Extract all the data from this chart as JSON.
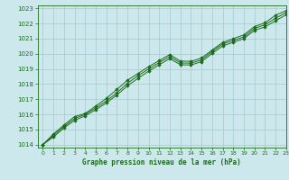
{
  "title": "Graphe pression niveau de la mer (hPa)",
  "bg_color": "#cce8ec",
  "grid_color": "#aacdd4",
  "line_color": "#1a6b1a",
  "marker_color": "#1a6b1a",
  "xlim": [
    -0.5,
    23
  ],
  "ylim": [
    1013.8,
    1023.2
  ],
  "xticks": [
    0,
    1,
    2,
    3,
    4,
    5,
    6,
    7,
    8,
    9,
    10,
    11,
    12,
    13,
    14,
    15,
    16,
    17,
    18,
    19,
    20,
    21,
    22,
    23
  ],
  "yticks": [
    1014,
    1015,
    1016,
    1017,
    1018,
    1019,
    1020,
    1021,
    1022,
    1023
  ],
  "series": [
    [
      1014.0,
      1014.7,
      1015.3,
      1015.85,
      1016.05,
      1016.55,
      1017.05,
      1017.65,
      1018.25,
      1018.7,
      1019.15,
      1019.55,
      1019.95,
      1019.52,
      1019.5,
      1019.72,
      1020.25,
      1020.75,
      1021.0,
      1021.25,
      1021.8,
      1022.05,
      1022.55,
      1022.85
    ],
    [
      1014.0,
      1014.6,
      1015.2,
      1015.72,
      1016.0,
      1016.42,
      1016.88,
      1017.42,
      1018.05,
      1018.55,
      1019.0,
      1019.42,
      1019.82,
      1019.4,
      1019.38,
      1019.6,
      1020.15,
      1020.65,
      1020.88,
      1021.12,
      1021.68,
      1021.92,
      1022.35,
      1022.72
    ],
    [
      1014.0,
      1014.5,
      1015.1,
      1015.6,
      1015.9,
      1016.3,
      1016.75,
      1017.28,
      1017.88,
      1018.38,
      1018.85,
      1019.28,
      1019.68,
      1019.28,
      1019.26,
      1019.48,
      1020.02,
      1020.52,
      1020.76,
      1021.0,
      1021.55,
      1021.78,
      1022.18,
      1022.58
    ]
  ]
}
